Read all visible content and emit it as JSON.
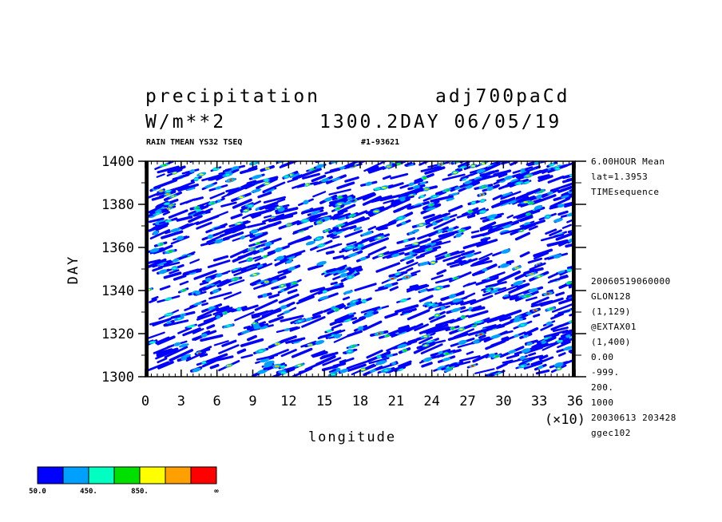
{
  "header": {
    "variable": "precipitation",
    "experiment": "adj700paCd",
    "units": "W/m**2",
    "time_label": "1300.2DAY 06/05/19",
    "subtitle_left": "RAIN TMEAN YS32 TSEQ",
    "subtitle_right": "#1-93621"
  },
  "side_info": {
    "top": [
      "6.00HOUR Mean",
      "lat=1.3953",
      "TIMEsequence"
    ],
    "bottom": [
      "20060519060000",
      "GLON128",
      "(1,129)",
      "@EXTAX01",
      "(1,400)",
      "0.00",
      "-999.",
      "200.",
      "1000",
      "20030613 203428",
      "ggec102"
    ]
  },
  "colors": {
    "levels": [
      "#0000ff",
      "#00a0ff",
      "#00ffc0",
      "#00e000",
      "#ffff00",
      "#ffa000",
      "#ff0000"
    ]
  },
  "colorbar": {
    "labels": [
      "50.0",
      "450.",
      "850.",
      "∞"
    ]
  },
  "chart_data": {
    "type": "heatmap",
    "title": "precipitation",
    "xlabel": "longitude",
    "ylabel": "DAY",
    "x_multiplier": "(×10)",
    "xlim": [
      0,
      36
    ],
    "ylim": [
      1300,
      1400
    ],
    "x_ticks": [
      "0",
      "3",
      "6",
      "9",
      "12",
      "15",
      "18",
      "21",
      "24",
      "27",
      "30",
      "33",
      "36"
    ],
    "y_ticks": [
      "1300",
      "1320",
      "1340",
      "1360",
      "1380",
      "1400"
    ],
    "contour_levels": [
      50,
      250,
      450,
      650,
      850,
      1050
    ],
    "note": "Hovmöller time-longitude diagram of precipitation, shaded at 200 W/m**2 intervals starting at 50"
  }
}
